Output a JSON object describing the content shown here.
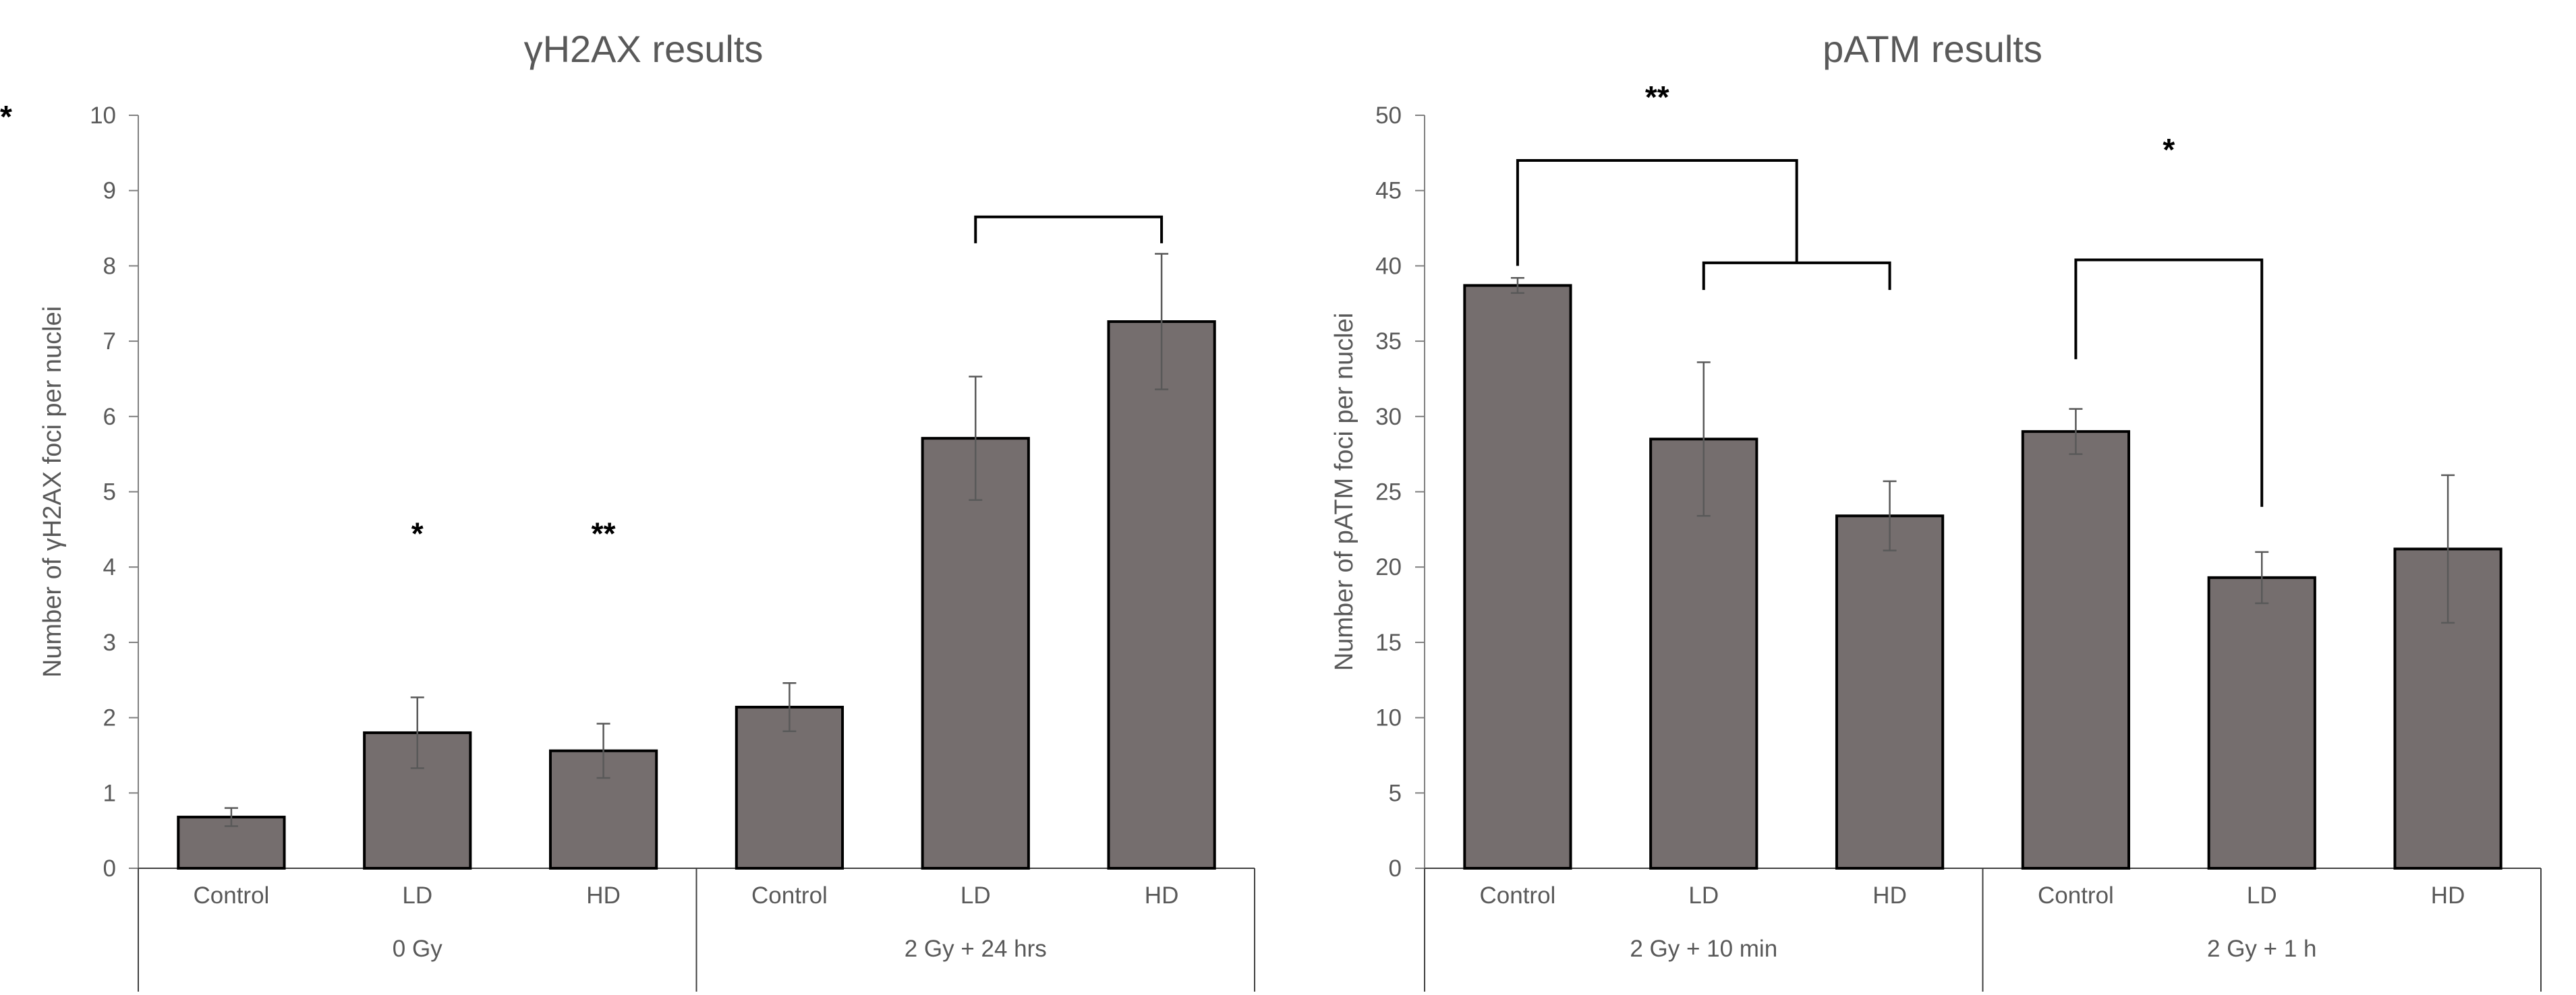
{
  "chart_data": [
    {
      "type": "bar",
      "title": "γH2AX results",
      "ylabel": "Number of γH2AX foci per nuclei",
      "xlabel": "",
      "ylim": [
        0,
        10
      ],
      "yticks": [
        "0",
        "1",
        "2",
        "3",
        "4",
        "5",
        "6",
        "7",
        "8",
        "9",
        "10"
      ],
      "grid": false,
      "categories": [
        "Control",
        "LD",
        "HD",
        "Control",
        "LD",
        "HD"
      ],
      "groups": [
        {
          "label": "0 Gy",
          "span": 3
        },
        {
          "label": "2 Gy + 24 hrs",
          "span": 3
        }
      ],
      "values": [
        0.68,
        1.8,
        1.56,
        2.14,
        5.71,
        7.26
      ],
      "errors": [
        0.12,
        0.47,
        0.36,
        0.32,
        0.82,
        0.9
      ],
      "bar_color": "#756e6e",
      "annotations": [
        {
          "text": "*",
          "over": 1
        },
        {
          "text": "**",
          "over": 2
        }
      ],
      "brackets": [
        {
          "text": "**",
          "level": 9.5,
          "left_end": 3.05,
          "left_low": 2.8,
          "right_sub": 1
        }
      ],
      "sub_brackets": [
        {
          "from": 4,
          "to": 5,
          "level": 8.65,
          "low": 8.3
        }
      ]
    },
    {
      "type": "bar",
      "title": "pATM results",
      "ylabel": "Number of pATM foci per nuclei",
      "xlabel": "",
      "ylim": [
        0,
        50
      ],
      "yticks": [
        "0",
        "5",
        "10",
        "15",
        "20",
        "25",
        "30",
        "35",
        "40",
        "45",
        "50"
      ],
      "grid": false,
      "categories": [
        "Control",
        "LD",
        "HD",
        "Control",
        "LD",
        "HD"
      ],
      "groups": [
        {
          "label": "2 Gy + 10 min",
          "span": 3
        },
        {
          "label": "2 Gy + 1 h",
          "span": 3
        }
      ],
      "values": [
        38.7,
        28.5,
        23.4,
        29.0,
        19.3,
        21.2
      ],
      "errors": [
        0.5,
        5.1,
        2.3,
        1.5,
        1.7,
        4.9
      ],
      "bar_color": "#756e6e",
      "annotations": [],
      "brackets": [
        {
          "text": "**",
          "level": 47.0,
          "left_end": 40.0,
          "right_sub": 0,
          "text_level": 50.5
        },
        {
          "text": "*",
          "level": 40.4,
          "from": 3,
          "to": 4,
          "left_low": 33.8,
          "right_low": 24.0,
          "text_level": 47.0
        }
      ],
      "sub_brackets": [
        {
          "from": 1,
          "to": 2,
          "level": 40.2,
          "low": 38.4
        }
      ]
    }
  ]
}
